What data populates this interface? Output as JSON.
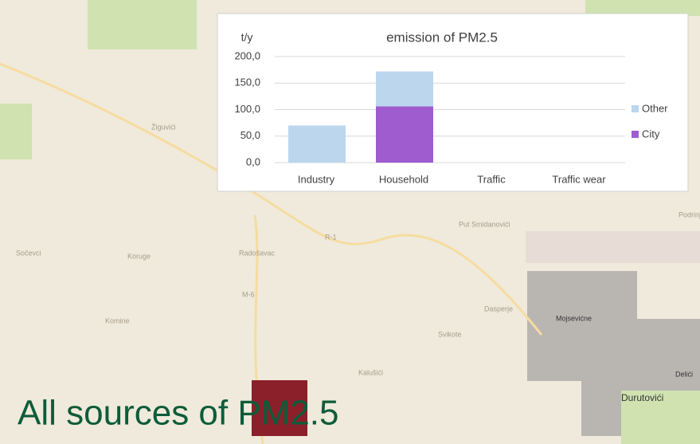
{
  "chart_data": {
    "type": "stacked_bar",
    "title": "emission of PM2.5",
    "y_label": "t/y",
    "categories": [
      "Industry",
      "Household",
      "Traffic",
      "Traffic wear"
    ],
    "series": [
      {
        "name": "City",
        "color": "#9e5ccf",
        "values": [
          0,
          106,
          0,
          0
        ]
      },
      {
        "name": "Other",
        "color": "#bcd6ee",
        "values": [
          70,
          66,
          0,
          0
        ]
      }
    ],
    "ylim": [
      0,
      200
    ],
    "yticks": [
      {
        "value": 0,
        "label": "0,0"
      },
      {
        "value": 50,
        "label": "50,0"
      },
      {
        "value": 100,
        "label": "100,0"
      },
      {
        "value": 150,
        "label": "150,0"
      },
      {
        "value": 200,
        "label": "200,0"
      }
    ],
    "grid": true,
    "legend": "right"
  },
  "caption": "All sources of PM2.5",
  "map_labels": [
    "Žiguvići",
    "Koruge",
    "Sočevci",
    "Komine",
    "Radošavac",
    "Kalušići",
    "Svikote",
    "Dasperje",
    "Mojsevićne",
    "Durutovići",
    "Delići",
    "Put Smidanovići",
    "Podrinje",
    "M-6",
    "R-1"
  ]
}
